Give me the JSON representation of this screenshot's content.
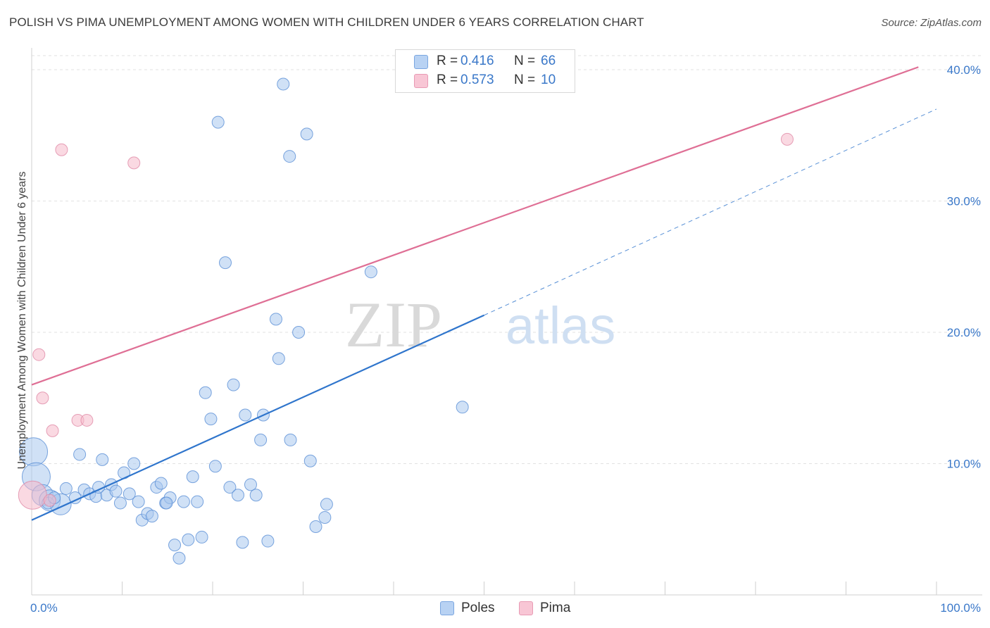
{
  "header": {
    "title": "POLISH VS PIMA UNEMPLOYMENT AMONG WOMEN WITH CHILDREN UNDER 6 YEARS CORRELATION CHART",
    "source": "Source: ZipAtlas.com"
  },
  "watermark": {
    "zip": "ZIP",
    "atlas": "atlas"
  },
  "legend": {
    "rows": [
      {
        "r_label": "R =",
        "r_value": "0.416",
        "n_label": "N =",
        "n_value": "66"
      },
      {
        "r_label": "R =",
        "r_value": "0.573",
        "n_label": "N =",
        "n_value": "10"
      }
    ]
  },
  "bottom_legend": {
    "poles": "Poles",
    "pima": "Pima"
  },
  "colors": {
    "poles_fill": "#a9c8ef",
    "poles_stroke": "#5a8fd6",
    "poles_line": "#2f75cc",
    "pima_fill": "#f6b9cb",
    "pima_stroke": "#e089a6",
    "pima_line": "#df6f95",
    "tick_label": "#3a78c9",
    "grid": "#e2e2e2"
  },
  "chart_data": {
    "type": "scatter",
    "title": "POLISH VS PIMA UNEMPLOYMENT AMONG WOMEN WITH CHILDREN UNDER 6 YEARS CORRELATION CHART",
    "xlabel": "",
    "ylabel": "Unemployment Among Women with Children Under 6 years",
    "xlim": [
      0,
      100
    ],
    "ylim": [
      0,
      41.5
    ],
    "x_tick_labels": [
      "0.0%",
      "100.0%"
    ],
    "y_ticks": [
      10,
      20,
      30,
      40
    ],
    "y_tick_labels": [
      "10.0%",
      "20.0%",
      "30.0%",
      "40.0%"
    ],
    "grid": true,
    "series": [
      {
        "name": "Poles",
        "R": 0.416,
        "N": 66,
        "trend": {
          "x0": 0,
          "y0": 5.7,
          "x1": 50,
          "y1": 21.3,
          "dashed_to_x": 100,
          "dashed_to_y": 37
        },
        "points": [
          {
            "x": 0.2,
            "y": 10.9,
            "s": 3
          },
          {
            "x": 0.5,
            "y": 9.0,
            "s": 3
          },
          {
            "x": 1.2,
            "y": 7.6,
            "s": 2
          },
          {
            "x": 2.0,
            "y": 7.2,
            "s": 2
          },
          {
            "x": 3.2,
            "y": 6.9,
            "s": 2
          },
          {
            "x": 1.8,
            "y": 7.0,
            "s": 1
          },
          {
            "x": 2.5,
            "y": 7.4,
            "s": 1
          },
          {
            "x": 3.8,
            "y": 8.1,
            "s": 1
          },
          {
            "x": 4.8,
            "y": 7.4,
            "s": 1
          },
          {
            "x": 5.3,
            "y": 10.7,
            "s": 1
          },
          {
            "x": 5.8,
            "y": 8.0,
            "s": 1
          },
          {
            "x": 6.4,
            "y": 7.7,
            "s": 1
          },
          {
            "x": 7.1,
            "y": 7.5,
            "s": 1
          },
          {
            "x": 7.4,
            "y": 8.2,
            "s": 1
          },
          {
            "x": 7.8,
            "y": 10.3,
            "s": 1
          },
          {
            "x": 8.3,
            "y": 7.6,
            "s": 1
          },
          {
            "x": 8.8,
            "y": 8.4,
            "s": 1
          },
          {
            "x": 9.3,
            "y": 7.9,
            "s": 1
          },
          {
            "x": 9.8,
            "y": 7.0,
            "s": 1
          },
          {
            "x": 10.2,
            "y": 9.3,
            "s": 1
          },
          {
            "x": 10.8,
            "y": 7.7,
            "s": 1
          },
          {
            "x": 11.3,
            "y": 10.0,
            "s": 1
          },
          {
            "x": 11.8,
            "y": 7.1,
            "s": 1
          },
          {
            "x": 12.2,
            "y": 5.7,
            "s": 1
          },
          {
            "x": 12.8,
            "y": 6.2,
            "s": 1
          },
          {
            "x": 13.3,
            "y": 6.0,
            "s": 1
          },
          {
            "x": 13.8,
            "y": 8.2,
            "s": 1
          },
          {
            "x": 14.3,
            "y": 8.5,
            "s": 1
          },
          {
            "x": 14.8,
            "y": 7.0,
            "s": 1
          },
          {
            "x": 15.3,
            "y": 7.4,
            "s": 1
          },
          {
            "x": 15.8,
            "y": 3.8,
            "s": 1
          },
          {
            "x": 16.3,
            "y": 2.8,
            "s": 1
          },
          {
            "x": 16.8,
            "y": 7.1,
            "s": 1
          },
          {
            "x": 17.3,
            "y": 4.2,
            "s": 1
          },
          {
            "x": 17.8,
            "y": 9.0,
            "s": 1
          },
          {
            "x": 18.3,
            "y": 7.1,
            "s": 1
          },
          {
            "x": 18.8,
            "y": 4.4,
            "s": 1
          },
          {
            "x": 19.2,
            "y": 15.4,
            "s": 1
          },
          {
            "x": 19.8,
            "y": 13.4,
            "s": 1
          },
          {
            "x": 20.3,
            "y": 9.8,
            "s": 1
          },
          {
            "x": 20.6,
            "y": 36.0,
            "s": 1
          },
          {
            "x": 21.4,
            "y": 25.3,
            "s": 1
          },
          {
            "x": 21.9,
            "y": 8.2,
            "s": 1
          },
          {
            "x": 22.3,
            "y": 16.0,
            "s": 1
          },
          {
            "x": 22.8,
            "y": 7.6,
            "s": 1
          },
          {
            "x": 23.3,
            "y": 4.0,
            "s": 1
          },
          {
            "x": 23.6,
            "y": 13.7,
            "s": 1
          },
          {
            "x": 24.2,
            "y": 8.4,
            "s": 1
          },
          {
            "x": 24.8,
            "y": 7.6,
            "s": 1
          },
          {
            "x": 25.3,
            "y": 11.8,
            "s": 1
          },
          {
            "x": 25.6,
            "y": 13.7,
            "s": 1
          },
          {
            "x": 26.1,
            "y": 4.1,
            "s": 1
          },
          {
            "x": 27.0,
            "y": 21.0,
            "s": 1
          },
          {
            "x": 27.3,
            "y": 18.0,
            "s": 1
          },
          {
            "x": 27.8,
            "y": 38.9,
            "s": 1
          },
          {
            "x": 28.5,
            "y": 33.4,
            "s": 1
          },
          {
            "x": 28.6,
            "y": 11.8,
            "s": 1
          },
          {
            "x": 29.5,
            "y": 20.0,
            "s": 1
          },
          {
            "x": 30.4,
            "y": 35.1,
            "s": 1
          },
          {
            "x": 30.8,
            "y": 10.2,
            "s": 1
          },
          {
            "x": 31.4,
            "y": 5.2,
            "s": 1
          },
          {
            "x": 32.4,
            "y": 5.9,
            "s": 1
          },
          {
            "x": 32.6,
            "y": 6.9,
            "s": 1
          },
          {
            "x": 37.5,
            "y": 24.6,
            "s": 1
          },
          {
            "x": 47.6,
            "y": 14.3,
            "s": 1
          },
          {
            "x": 14.9,
            "y": 7.0,
            "s": 1
          }
        ]
      },
      {
        "name": "Pima",
        "R": 0.573,
        "N": 10,
        "trend": {
          "x0": 0,
          "y0": 16.0,
          "x1": 98,
          "y1": 40.2
        },
        "points": [
          {
            "x": 0.1,
            "y": 7.6,
            "s": 3
          },
          {
            "x": 0.8,
            "y": 18.3,
            "s": 1
          },
          {
            "x": 1.2,
            "y": 15.0,
            "s": 1
          },
          {
            "x": 2.3,
            "y": 12.5,
            "s": 1
          },
          {
            "x": 3.3,
            "y": 33.9,
            "s": 1
          },
          {
            "x": 5.1,
            "y": 13.3,
            "s": 1
          },
          {
            "x": 6.1,
            "y": 13.3,
            "s": 1
          },
          {
            "x": 11.3,
            "y": 32.9,
            "s": 1
          },
          {
            "x": 83.5,
            "y": 34.7,
            "s": 1
          },
          {
            "x": 2.0,
            "y": 7.2,
            "s": 1
          }
        ]
      }
    ]
  }
}
